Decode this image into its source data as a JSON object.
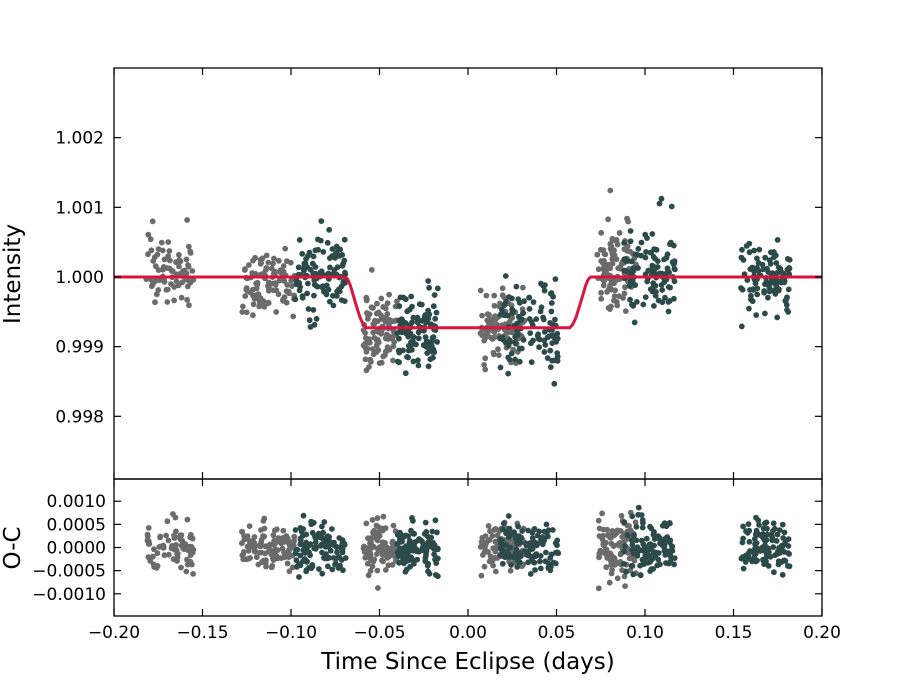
{
  "chart_data": [
    {
      "type": "scatter",
      "panel": "top",
      "title": "",
      "xlabel": "",
      "ylabel": "Intensity",
      "xlim": [
        -0.2,
        0.2
      ],
      "ylim": [
        0.9971,
        1.003
      ],
      "grid": false,
      "yticks": [
        0.998,
        0.999,
        1.0,
        1.001,
        1.002
      ],
      "ytick_labels": [
        "0.998",
        "0.999",
        "1.000",
        "1.001",
        "1.002"
      ],
      "colors": {
        "grey_points": "#6b6b6b",
        "teal_points": "#2c4a4a",
        "model": "#dc143c"
      },
      "model_curve": {
        "x": [
          -0.2,
          -0.0695,
          -0.0688,
          -0.0678,
          -0.0665,
          -0.065,
          -0.063,
          -0.061,
          -0.0592,
          -0.0575,
          0.0575,
          0.0592,
          0.061,
          0.063,
          0.065,
          0.0665,
          0.0678,
          0.0688,
          0.0695,
          0.2
        ],
        "y": [
          1.0,
          1.0,
          0.99999,
          0.99996,
          0.99988,
          0.99975,
          0.99958,
          0.99942,
          0.99932,
          0.99927,
          0.99927,
          0.99932,
          0.99942,
          0.99958,
          0.99975,
          0.99988,
          0.99996,
          0.99999,
          1.0,
          1.0
        ]
      },
      "observation_groups": [
        {
          "x_range": [
            -0.182,
            -0.155
          ],
          "y_center": 1.0001,
          "y_sd": 0.00027,
          "n": 80,
          "color": "grey"
        },
        {
          "x_range": [
            -0.128,
            -0.098
          ],
          "y_center": 0.99992,
          "y_sd": 0.00023,
          "n": 105,
          "color": "grey"
        },
        {
          "x_range": [
            -0.098,
            -0.069
          ],
          "y_center": 1.0,
          "y_sd": 0.00026,
          "n": 110,
          "color": "teal"
        },
        {
          "x_range": [
            -0.059,
            -0.04
          ],
          "y_center": 0.99927,
          "y_sd": 0.0003,
          "n": 95,
          "color": "grey"
        },
        {
          "x_range": [
            -0.04,
            -0.017
          ],
          "y_center": 0.99925,
          "y_sd": 0.00028,
          "n": 110,
          "color": "teal"
        },
        {
          "x_range": [
            0.007,
            0.032
          ],
          "y_center": 0.99928,
          "y_sd": 0.00025,
          "n": 100,
          "color": "grey"
        },
        {
          "x_range": [
            0.018,
            0.051
          ],
          "y_center": 0.99925,
          "y_sd": 0.00027,
          "n": 110,
          "color": "teal"
        },
        {
          "x_range": [
            0.073,
            0.095
          ],
          "y_center": 1.0001,
          "y_sd": 0.00032,
          "n": 105,
          "color": "grey"
        },
        {
          "x_range": [
            0.088,
            0.117
          ],
          "y_center": 1.0001,
          "y_sd": 0.0003,
          "n": 110,
          "color": "teal"
        },
        {
          "x_range": [
            0.154,
            0.182
          ],
          "y_center": 0.99995,
          "y_sd": 0.00027,
          "n": 105,
          "color": "teal"
        }
      ]
    },
    {
      "type": "scatter",
      "panel": "bottom",
      "title": "",
      "xlabel": "Time Since Eclipse (days)",
      "ylabel": "O-C",
      "xlim": [
        -0.2,
        0.2
      ],
      "ylim": [
        -0.00148,
        0.00148
      ],
      "grid": false,
      "xticks": [
        -0.2,
        -0.15,
        -0.1,
        -0.05,
        0.0,
        0.05,
        0.1,
        0.15,
        0.2
      ],
      "xtick_labels": [
        "−0.20",
        "−0.15",
        "−0.10",
        "−0.05",
        "0.00",
        "0.05",
        "0.10",
        "0.15",
        "0.20"
      ],
      "yticks": [
        -0.001,
        -0.0005,
        0.0,
        0.0005,
        0.001
      ],
      "ytick_labels": [
        "−0.0010",
        "−0.0005",
        "0.0000",
        "0.0005",
        "0.0010"
      ],
      "residual_groups": [
        {
          "x_range": [
            -0.182,
            -0.155
          ],
          "y_sd": 0.00027,
          "n": 80,
          "color": "grey"
        },
        {
          "x_range": [
            -0.128,
            -0.098
          ],
          "y_sd": 0.00023,
          "n": 105,
          "color": "grey"
        },
        {
          "x_range": [
            -0.098,
            -0.069
          ],
          "y_sd": 0.00026,
          "n": 110,
          "color": "teal"
        },
        {
          "x_range": [
            -0.059,
            -0.04
          ],
          "y_sd": 0.0003,
          "n": 95,
          "color": "grey"
        },
        {
          "x_range": [
            -0.04,
            -0.017
          ],
          "y_sd": 0.00028,
          "n": 110,
          "color": "teal"
        },
        {
          "x_range": [
            0.007,
            0.032
          ],
          "y_sd": 0.00025,
          "n": 100,
          "color": "grey"
        },
        {
          "x_range": [
            0.018,
            0.051
          ],
          "y_sd": 0.00027,
          "n": 110,
          "color": "teal"
        },
        {
          "x_range": [
            0.073,
            0.095
          ],
          "y_sd": 0.00032,
          "n": 105,
          "color": "grey"
        },
        {
          "x_range": [
            0.088,
            0.117
          ],
          "y_sd": 0.0003,
          "n": 110,
          "color": "teal"
        },
        {
          "x_range": [
            0.154,
            0.182
          ],
          "y_sd": 0.00027,
          "n": 105,
          "color": "teal"
        }
      ]
    }
  ]
}
